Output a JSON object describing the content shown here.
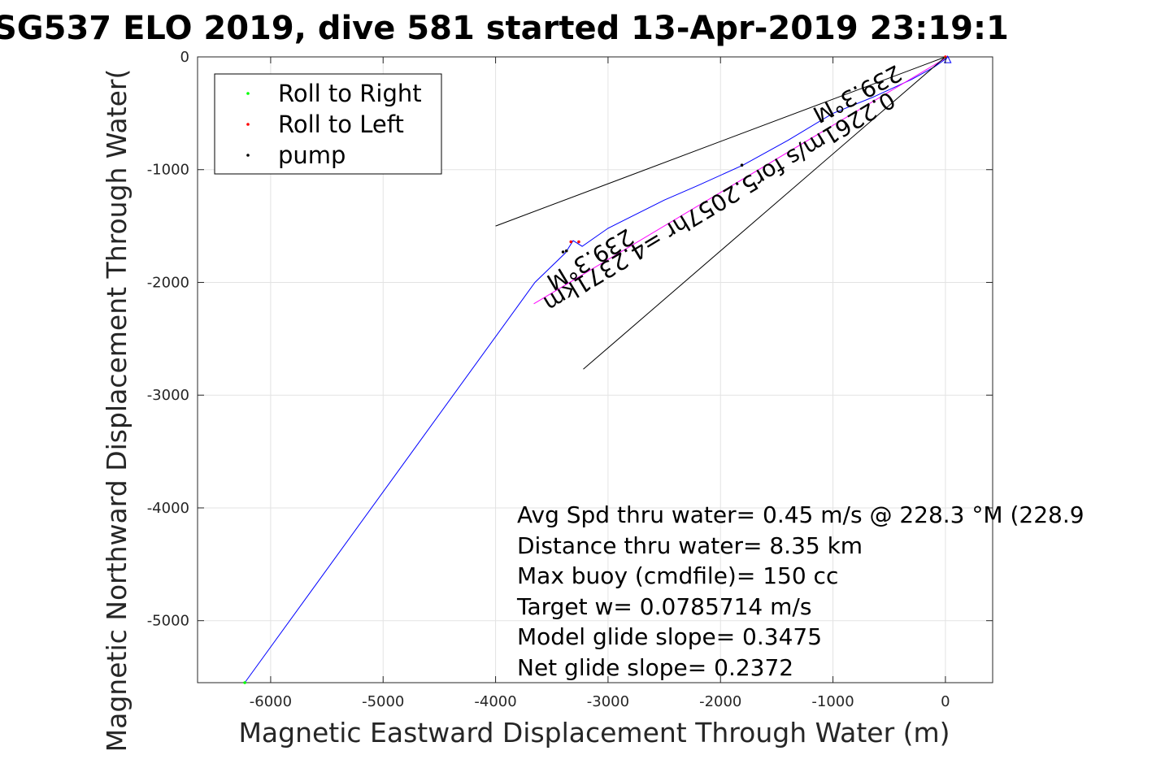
{
  "chart_data": {
    "type": "line",
    "title": "SG537 ELO 2019, dive 581 started 13-Apr-2019 23:19:1",
    "xlabel": "Magnetic Eastward Displacement Through Water (m)",
    "ylabel": "Magnetic Northward Displacement Through Water(",
    "xlim": [
      -6650,
      420
    ],
    "ylim": [
      -5550,
      0
    ],
    "xticks": [
      -6000,
      -5000,
      -4000,
      -3000,
      -2000,
      -1000,
      0
    ],
    "yticks": [
      0,
      -1000,
      -2000,
      -3000,
      -4000,
      -5000
    ],
    "grid": true,
    "legend": {
      "placement": "top-left",
      "entries": [
        {
          "label": "Roll to Right",
          "color": "#00ff00"
        },
        {
          "label": "Roll to Left",
          "color": "#ff0000"
        },
        {
          "label": "pump",
          "color": "#000000"
        }
      ]
    },
    "series": [
      {
        "color": "#0000ff",
        "x": [
          -6230,
          -3650,
          -3380,
          -3310,
          -3230,
          -3000,
          -2500,
          -2200,
          -1800,
          -1400,
          -1000,
          -650,
          -300,
          -100,
          0,
          20
        ],
        "y": [
          -5550,
          -2000,
          -1740,
          -1630,
          -1680,
          -1520,
          -1270,
          -1140,
          -960,
          -740,
          -500,
          -360,
          -200,
          -90,
          -20,
          0
        ]
      },
      {
        "color": "#ff00ff",
        "x": [
          -3660,
          20
        ],
        "y": [
          -2190,
          0
        ]
      },
      {
        "color": "#000000",
        "x": [
          -4000,
          0
        ],
        "y": [
          -1500,
          0
        ]
      },
      {
        "color": "#000000",
        "x": [
          -3220,
          0
        ],
        "y": [
          -2770,
          0
        ]
      }
    ],
    "markers": [
      {
        "color": "#00ff00",
        "points": [
          [
            -6230,
            -5550
          ],
          [
            0,
            -5
          ]
        ]
      },
      {
        "color": "#ff0000",
        "points": [
          [
            -3330,
            -1640
          ],
          [
            -3260,
            -1640
          ],
          [
            0,
            0
          ]
        ]
      },
      {
        "color": "#000000",
        "points": [
          [
            -3400,
            -1730
          ],
          [
            -3370,
            -1720
          ],
          [
            -1810,
            -960
          ]
        ]
      }
    ],
    "end_marker": {
      "x": 20,
      "y": -30,
      "color": "#0000ff"
    },
    "annotations": [
      "Avg Spd thru water=  0.45 m/s @ 228.3 °M (228.9",
      "Distance thru water=  8.35 km",
      "Max buoy (cmdfile)= 150 cc",
      "Target w= 0.0785714 m/s",
      "Model glide slope= 0.3475",
      "Net glide slope= 0.2372"
    ],
    "rotated_labels": {
      "upper": "239.3°M",
      "middle": "0.2261m/s for5.2057hr =4.2371km",
      "lower": "239.3°M"
    }
  }
}
